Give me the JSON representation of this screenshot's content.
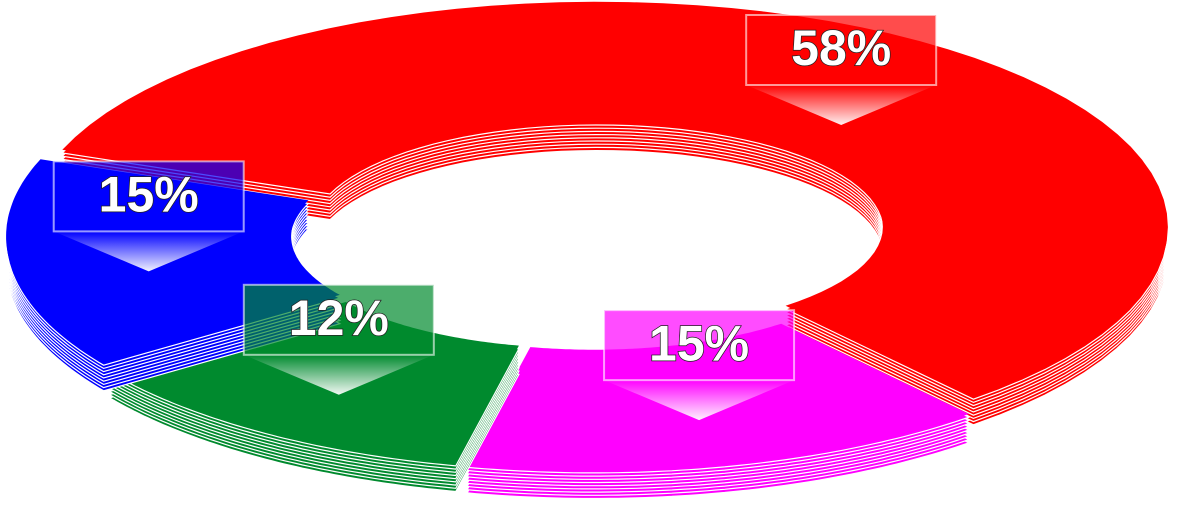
{
  "chart_data": {
    "type": "donut",
    "values": [
      58,
      15,
      12,
      15
    ],
    "value_labels": [
      "58%",
      "15%",
      "12%",
      "15%"
    ],
    "colors": [
      "#ff0000",
      "#ff00ff",
      "#008a2e",
      "#0000ff"
    ]
  }
}
